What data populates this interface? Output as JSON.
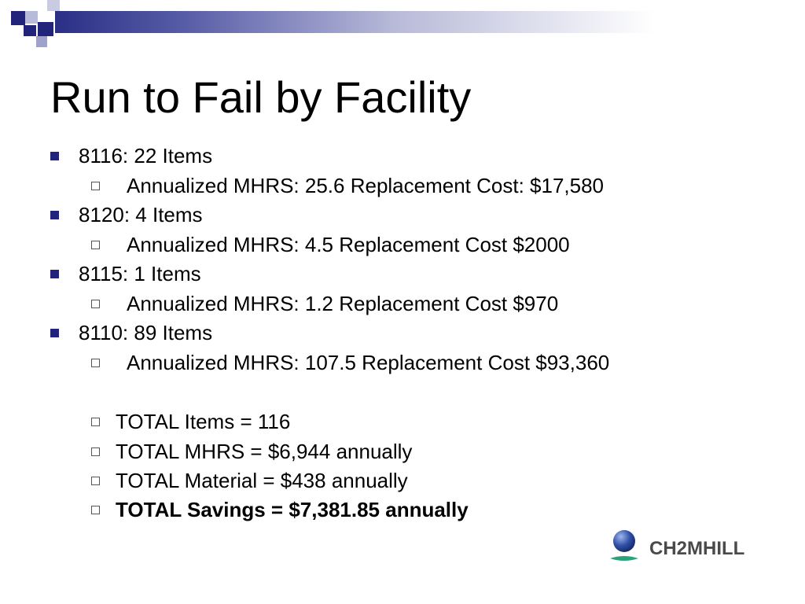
{
  "slide": {
    "title": "Run to Fail by Facility",
    "items": [
      {
        "level": 1,
        "text": "8116:  22 Items"
      },
      {
        "level": 2,
        "text": "Annualized MHRS: 25.6  Replacement Cost: $17,580"
      },
      {
        "level": 1,
        "text": "8120:  4  Items"
      },
      {
        "level": 2,
        "text": "Annualized MHRS: 4.5  Replacement Cost $2000"
      },
      {
        "level": 1,
        "text": "8115:  1 Items"
      },
      {
        "level": 2,
        "text": "Annualized MHRS: 1.2   Replacement Cost $970"
      },
      {
        "level": 1,
        "text": "8110:  89 Items"
      },
      {
        "level": 2,
        "text": "Annualized MHRS: 107.5  Replacement Cost $93,360"
      }
    ],
    "totals": [
      {
        "text": "TOTAL Items = 116",
        "bold": false
      },
      {
        "text": "TOTAL MHRS = $6,944 annually",
        "bold": false
      },
      {
        "text": "TOTAL Material = $438 annually",
        "bold": false
      },
      {
        "text": "TOTAL Savings = $7,381.85 annually",
        "bold": true
      }
    ]
  },
  "logo": {
    "text": "CH2MHILL",
    "colors": {
      "globe": "#2f4fa8",
      "swoosh": "#2aa37a",
      "text": "#4a4a4a"
    }
  },
  "theme": {
    "accent": "#22237a",
    "band_dark": "#2a2f86",
    "square_light": "#9fa2cc"
  }
}
